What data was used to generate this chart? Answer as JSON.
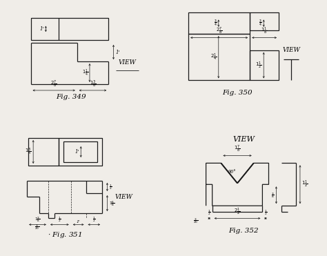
{
  "bg_color": "#f0ede8",
  "line_color": "#1a1a1a",
  "fig_title_349": "Fig. 349",
  "fig_title_350": "Fig. 350",
  "fig_title_351": "Fig. 351",
  "fig_title_352": "Fig. 352",
  "font_size_label": 6.5,
  "font_size_fig": 7.5,
  "font_size_dim": 5.0
}
